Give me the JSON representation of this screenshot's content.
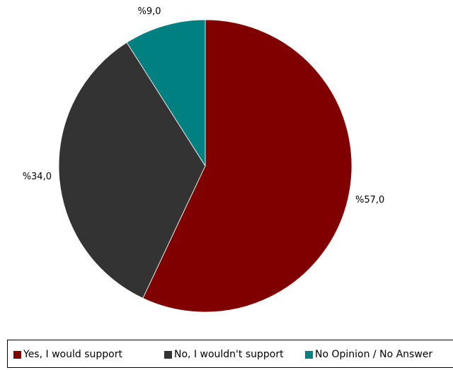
{
  "chart_data": {
    "type": "pie",
    "title": "",
    "slices": [
      {
        "label": "Yes, I would support",
        "value": 57.0,
        "display": "%57,0",
        "color": "#800000"
      },
      {
        "label": "No, I wouldn't support",
        "value": 34.0,
        "display": "%34,0",
        "color": "#333333"
      },
      {
        "label": "No Opinion / No Answer",
        "value": 9.0,
        "display": "%9,0",
        "color": "#008080"
      }
    ],
    "start": "12 o'clock",
    "direction": "clockwise",
    "legend_position": "bottom"
  }
}
